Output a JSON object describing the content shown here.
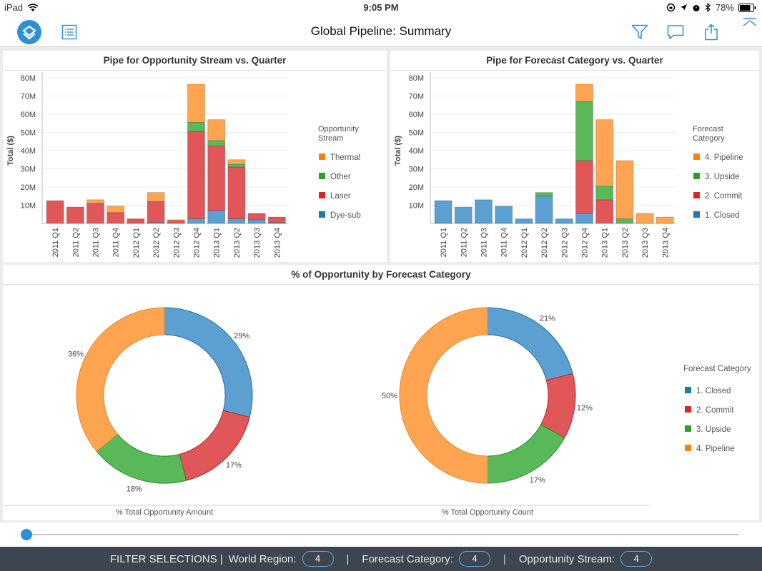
{
  "status": {
    "device": "iPad",
    "time": "9:05 PM",
    "battery": "78%"
  },
  "header": {
    "title": "Global Pipeline: Summary"
  },
  "charts": {
    "stream_title": "Pipe for Opportunity Stream vs. Quarter",
    "forecast_title": "Pipe for Forecast Category vs. Quarter",
    "pct_title": "% of Opportunity by Forecast Category"
  },
  "colors": {
    "blue": "#5ba0d0",
    "red": "#e15759",
    "green": "#59b959",
    "orange": "#ffa552",
    "legend_blue": "#1f77b4",
    "legend_red": "#d62728",
    "legend_green": "#2ca02c",
    "legend_orange": "#ff7f0e"
  },
  "chart_data": [
    {
      "type": "bar",
      "stacked": true,
      "title": "Pipe for Opportunity Stream vs. Quarter",
      "ylabel": "Total ($)",
      "ylim": [
        0,
        80000000
      ],
      "yticks": [
        "10M",
        "20M",
        "30M",
        "40M",
        "50M",
        "60M",
        "70M",
        "80M"
      ],
      "legend_title": "Opportunity Stream",
      "legend_position": "right",
      "categories": [
        "2011 Q1",
        "2011 Q2",
        "2011 Q3",
        "2011 Q4",
        "2012 Q1",
        "2012 Q2",
        "2012 Q3",
        "2012 Q4",
        "2013 Q1",
        "2013 Q2",
        "2013 Q3",
        "2013 Q4"
      ],
      "series": [
        {
          "name": "Dye-sub",
          "values": [
            0,
            0,
            0,
            0,
            0,
            0.5,
            0,
            2.5,
            7,
            2.5,
            2,
            0.5
          ]
        },
        {
          "name": "Laser",
          "values": [
            12.5,
            9,
            11,
            6,
            2.5,
            11.5,
            1.5,
            48,
            35.5,
            28.5,
            3.5,
            3
          ]
        },
        {
          "name": "Other",
          "values": [
            0,
            0,
            0,
            0,
            0,
            0,
            0,
            5,
            3,
            1.5,
            0,
            0
          ]
        },
        {
          "name": "Thermal",
          "values": [
            0,
            0,
            2,
            3.5,
            0,
            5,
            0.5,
            21,
            11.5,
            2.5,
            0,
            0
          ]
        }
      ],
      "value_unit": "M"
    },
    {
      "type": "bar",
      "stacked": true,
      "title": "Pipe for Forecast Category vs. Quarter",
      "ylabel": "Total ($)",
      "ylim": [
        0,
        80000000
      ],
      "yticks": [
        "10M",
        "20M",
        "30M",
        "40M",
        "50M",
        "60M",
        "70M",
        "80M"
      ],
      "legend_title": "Forecast Category",
      "legend_position": "right",
      "categories": [
        "2011 Q1",
        "2011 Q2",
        "2011 Q3",
        "2011 Q4",
        "2012 Q1",
        "2012 Q2",
        "2012 Q3",
        "2012 Q4",
        "2013 Q1",
        "2013 Q2",
        "2013 Q3",
        "2013 Q4"
      ],
      "series": [
        {
          "name": "1. Closed",
          "values": [
            12.5,
            9,
            13,
            9.5,
            2.5,
            15,
            2.5,
            5.5,
            0,
            0,
            0,
            0
          ]
        },
        {
          "name": "2. Commit",
          "values": [
            0,
            0,
            0,
            0,
            0,
            0,
            0,
            29,
            13,
            0,
            0,
            0
          ]
        },
        {
          "name": "3. Upside",
          "values": [
            0,
            0,
            0,
            0,
            0,
            2,
            0,
            32.5,
            7.5,
            2.5,
            0,
            0
          ]
        },
        {
          "name": "4. Pipeline",
          "values": [
            0,
            0,
            0,
            0,
            0,
            0,
            0,
            9.5,
            36.5,
            32,
            5.5,
            3.5
          ]
        }
      ],
      "value_unit": "M"
    },
    {
      "type": "pie",
      "donut": true,
      "caption": "% Total Opportunity Amount",
      "labels": [
        "1. Closed",
        "2. Commit",
        "3. Upside",
        "4. Pipeline"
      ],
      "values": [
        29,
        17,
        18,
        36
      ],
      "value_labels": [
        "29%",
        "17%",
        "18%",
        "36%"
      ]
    },
    {
      "type": "pie",
      "donut": true,
      "caption": "% Total Opportunity Count",
      "legend_title": "Forecast Category",
      "legend_position": "right",
      "labels": [
        "1. Closed",
        "2. Commit",
        "3. Upside",
        "4. Pipeline"
      ],
      "values": [
        21,
        12,
        17,
        50
      ],
      "value_labels": [
        "21%",
        "12%",
        "17%",
        "50%"
      ]
    }
  ],
  "filters": {
    "label": "FILTER SELECTIONS |",
    "items": [
      {
        "name": "World Region:",
        "count": "4"
      },
      {
        "name": "Forecast Category:",
        "count": "4"
      },
      {
        "name": "Opportunity Stream:",
        "count": "4"
      }
    ],
    "divider": "|"
  }
}
